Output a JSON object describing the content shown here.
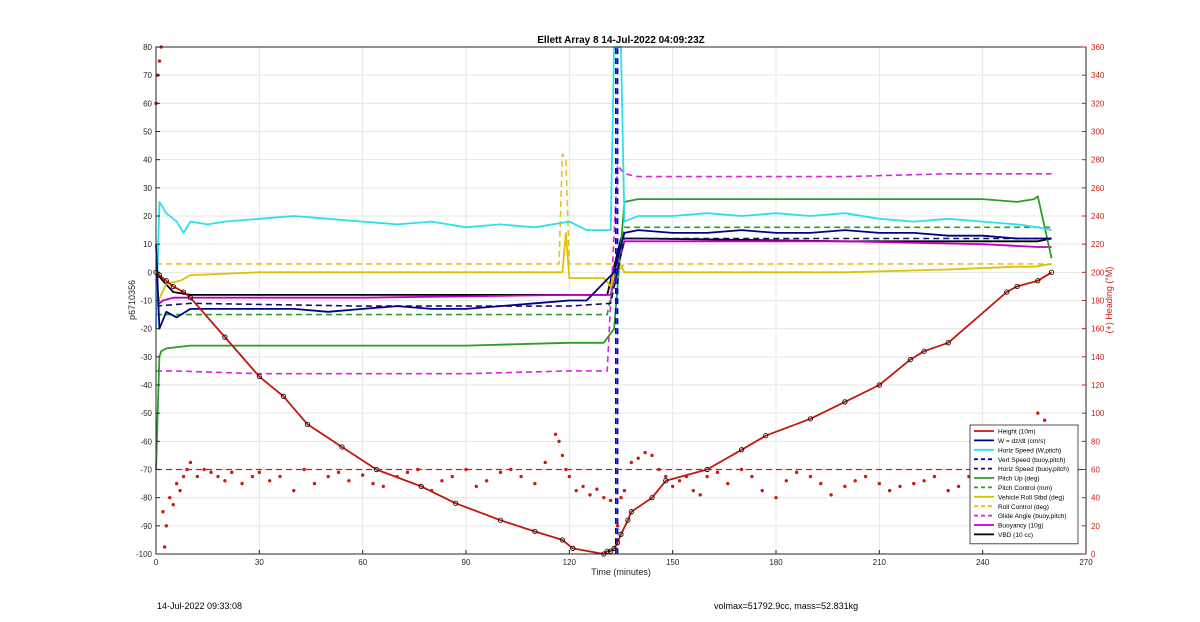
{
  "chart_data": {
    "type": "line",
    "title": "Ellett Array 8 14-Jul-2022 04:09:23Z",
    "xlabel": "Time (minutes)",
    "ylabel": "p6710356",
    "ylabel_right": "(+) Heading (°M)",
    "xlim": [
      0,
      270
    ],
    "ylim": [
      -100,
      80
    ],
    "ylim_right": [
      0,
      360
    ],
    "xticks": [
      0,
      30,
      60,
      90,
      120,
      150,
      180,
      210,
      240,
      270
    ],
    "yticks": [
      -100,
      -90,
      -80,
      -70,
      -60,
      -50,
      -40,
      -30,
      -20,
      -10,
      0,
      10,
      20,
      30,
      40,
      50,
      60,
      70,
      80
    ],
    "yticks_right": [
      0,
      20,
      40,
      60,
      80,
      100,
      120,
      140,
      160,
      180,
      200,
      220,
      240,
      260,
      280,
      300,
      320,
      340,
      360
    ],
    "grid": true,
    "legend_position": "bottom-right",
    "series": [
      {
        "name": "Height (10m)",
        "color": "#c0180c",
        "style": "solid-markers",
        "x": [
          0,
          1,
          3,
          5,
          8,
          10,
          20,
          30,
          37,
          44,
          54,
          64,
          77,
          87,
          100,
          110,
          118,
          121,
          130,
          131,
          132,
          133,
          134,
          135,
          137,
          138,
          144,
          148,
          160,
          170,
          177,
          190,
          200,
          210,
          219,
          223,
          230,
          247,
          250,
          256,
          260
        ],
        "y": [
          0,
          -1,
          -3,
          -5,
          -7,
          -9,
          -23,
          -37,
          -44,
          -54,
          -62,
          -70,
          -76,
          -82,
          -88,
          -92,
          -95,
          -98,
          -100,
          -99,
          -99,
          -98,
          -96,
          -93,
          -88,
          -85,
          -80,
          -74,
          -70,
          -63,
          -58,
          -52,
          -46,
          -40,
          -31,
          -28,
          -25,
          -7,
          -5,
          -3,
          0
        ]
      },
      {
        "name": "W = dz/dt (cm/s)",
        "color": "#00008b",
        "style": "solid",
        "x": [
          0,
          1,
          3,
          6,
          10,
          20,
          30,
          40,
          50,
          60,
          70,
          80,
          90,
          100,
          110,
          120,
          125,
          133,
          136,
          140,
          150,
          160,
          170,
          180,
          190,
          200,
          210,
          220,
          230,
          240,
          250,
          256,
          260
        ],
        "y": [
          10,
          -20,
          -14,
          -16,
          -13,
          -13,
          -13,
          -13,
          -14,
          -13,
          -12,
          -13,
          -13,
          -12,
          -11,
          -10,
          -10,
          0,
          14,
          15,
          14,
          14,
          15,
          14,
          14,
          15,
          14,
          14,
          13,
          13,
          12,
          12,
          12
        ]
      },
      {
        "name": "Horiz Speed (W,pitch)",
        "color": "#2de0e8",
        "style": "solid",
        "x": [
          0,
          1,
          3,
          6,
          8,
          10,
          15,
          20,
          30,
          40,
          50,
          60,
          70,
          80,
          90,
          100,
          110,
          120,
          125,
          132,
          133,
          134,
          135,
          136,
          140,
          150,
          160,
          170,
          180,
          190,
          200,
          210,
          220,
          230,
          240,
          250,
          256,
          260
        ],
        "y": [
          -20,
          25,
          21,
          18,
          14,
          18,
          17,
          18,
          19,
          20,
          19,
          18,
          17,
          18,
          16,
          17,
          16,
          18,
          15,
          15,
          80,
          80,
          80,
          18,
          20,
          20,
          21,
          20,
          21,
          20,
          21,
          19,
          18,
          19,
          18,
          17,
          16,
          15
        ]
      },
      {
        "name": "Vert Speed (buoy,pitch)",
        "color": "#0000dd",
        "style": "dashed",
        "x": [
          133.5,
          133.5,
          134,
          134
        ],
        "y": [
          -100,
          80,
          80,
          -100
        ]
      },
      {
        "name": "Horiz Speed (buoy,pitch)",
        "color": "#101060",
        "style": "dashed",
        "x": [
          0,
          10,
          60,
          120,
          132,
          136,
          160,
          220,
          260
        ],
        "y": [
          -12,
          -11,
          -12,
          -12,
          -11,
          12,
          12,
          12,
          12
        ]
      },
      {
        "name": "Pitch Up (deg)",
        "color": "#2a9d2a",
        "style": "solid",
        "x": [
          0,
          1,
          1.5,
          3,
          10,
          30,
          60,
          90,
          120,
          130,
          133,
          136,
          140,
          160,
          200,
          240,
          250,
          255,
          256,
          260
        ],
        "y": [
          -70,
          -30,
          -28,
          -27,
          -26,
          -26,
          -26,
          -26,
          -25,
          -25,
          -20,
          25,
          26,
          26,
          26,
          26,
          25,
          26,
          27,
          5
        ]
      },
      {
        "name": "Pitch Control (mm)",
        "color": "#2a9d2a",
        "style": "dashed",
        "x": [
          0,
          5,
          131,
          136,
          260
        ],
        "y": [
          -15,
          -15,
          -15,
          16,
          16
        ]
      },
      {
        "name": "Vehicle Roll Stbd (deg)",
        "color": "#e0c000",
        "style": "solid",
        "x": [
          0,
          3,
          7,
          10,
          30,
          60,
          80,
          100,
          118,
          119,
          120,
          130,
          132,
          134,
          136,
          140,
          160,
          170,
          200,
          230,
          250,
          255,
          260
        ],
        "y": [
          -12,
          -4,
          -3,
          -1,
          0,
          0,
          0,
          0,
          0,
          14,
          -2,
          -2,
          -5,
          5,
          0,
          0,
          0,
          0,
          0,
          1,
          2,
          2,
          3
        ]
      },
      {
        "name": "Roll Control (deg)",
        "color": "#e8c020",
        "style": "dashed",
        "x": [
          0,
          3,
          10,
          30,
          60,
          90,
          117,
          118,
          119,
          120,
          130,
          132,
          134,
          136,
          140,
          170,
          200,
          230,
          250,
          260
        ],
        "y": [
          3,
          3,
          3,
          3,
          3,
          3,
          3,
          42,
          40,
          3,
          3,
          3,
          0,
          3,
          3,
          3,
          3,
          3,
          3,
          3
        ]
      },
      {
        "name": "Glide Angle (buoy,pitch)",
        "color": "#e020e0",
        "style": "dashed",
        "x": [
          0,
          5,
          30,
          60,
          90,
          120,
          131,
          134,
          136,
          140,
          170,
          200,
          230,
          256,
          260
        ],
        "y": [
          -35,
          -35,
          -36,
          -36,
          -36,
          -35,
          -35,
          38,
          35,
          34,
          34,
          34,
          35,
          35,
          35
        ]
      },
      {
        "name": "Buoyancy (10g)",
        "color": "#c000c0",
        "style": "solid",
        "x": [
          0,
          2,
          5,
          10,
          60,
          120,
          132,
          136,
          140,
          200,
          240,
          256,
          260
        ],
        "y": [
          -12,
          -10,
          -9,
          -9,
          -9,
          -8,
          -8,
          11,
          11,
          11,
          10,
          9,
          9
        ]
      },
      {
        "name": "VBD (10 cc)",
        "color": "#000000",
        "style": "solid",
        "x": [
          0,
          2,
          5,
          10,
          60,
          120,
          131,
          135,
          140,
          200,
          240,
          256,
          260
        ],
        "y": [
          0,
          -3,
          -7,
          -8,
          -8,
          -8,
          -8,
          12,
          12,
          11,
          11,
          11,
          12
        ]
      }
    ],
    "heading_series": {
      "axis": "right",
      "color": "#d01a10",
      "reference_line": 60,
      "x": [
        0,
        0.5,
        1,
        1.5,
        2,
        2.5,
        3,
        4,
        5,
        6,
        7,
        8,
        9,
        10,
        12,
        14,
        16,
        18,
        20,
        22,
        25,
        28,
        30,
        33,
        36,
        40,
        43,
        46,
        50,
        53,
        56,
        60,
        63,
        66,
        70,
        73,
        76,
        80,
        83,
        86,
        90,
        93,
        96,
        100,
        103,
        106,
        110,
        113,
        116,
        117,
        118,
        119,
        120,
        122,
        124,
        126,
        128,
        130,
        132,
        134,
        135,
        136,
        138,
        140,
        142,
        144,
        146,
        148,
        150,
        152,
        154,
        156,
        158,
        160,
        163,
        166,
        170,
        173,
        176,
        180,
        183,
        186,
        190,
        193,
        196,
        200,
        203,
        206,
        210,
        213,
        216,
        220,
        223,
        226,
        230,
        233,
        236,
        240,
        243,
        246,
        250,
        253,
        256,
        258
      ],
      "y": [
        320,
        340,
        350,
        360,
        30,
        5,
        20,
        40,
        35,
        50,
        45,
        55,
        60,
        65,
        55,
        60,
        58,
        55,
        52,
        58,
        50,
        55,
        58,
        52,
        55,
        45,
        60,
        50,
        55,
        58,
        52,
        56,
        50,
        48,
        55,
        58,
        60,
        45,
        52,
        55,
        60,
        48,
        52,
        58,
        60,
        55,
        50,
        65,
        85,
        80,
        70,
        60,
        55,
        45,
        48,
        42,
        46,
        40,
        38,
        20,
        40,
        45,
        65,
        68,
        72,
        70,
        60,
        55,
        48,
        52,
        55,
        45,
        42,
        55,
        58,
        50,
        60,
        55,
        45,
        40,
        52,
        58,
        55,
        50,
        42,
        48,
        52,
        55,
        50,
        45,
        48,
        50,
        52,
        55,
        45,
        48,
        55,
        48,
        52,
        55,
        58,
        90,
        100,
        95
      ]
    },
    "legend": [
      "Height (10m)",
      "W = dz/dt (cm/s)",
      "Horiz Speed (W,pitch)",
      "Vert Speed (buoy,pitch)",
      "Horiz Speed (buoy,pitch)",
      "Pitch Up (deg)",
      "Pitch Control (mm)",
      "Vehicle Roll Stbd (deg)",
      "Roll Control (deg)",
      "Glide Angle (buoy,pitch)",
      "Buoyancy (10g)",
      "VBD (10 cc)"
    ]
  },
  "footer": {
    "left": "14-Jul-2022 09:33:08",
    "right": "volmax=51792.9cc, mass=52.831kg"
  }
}
